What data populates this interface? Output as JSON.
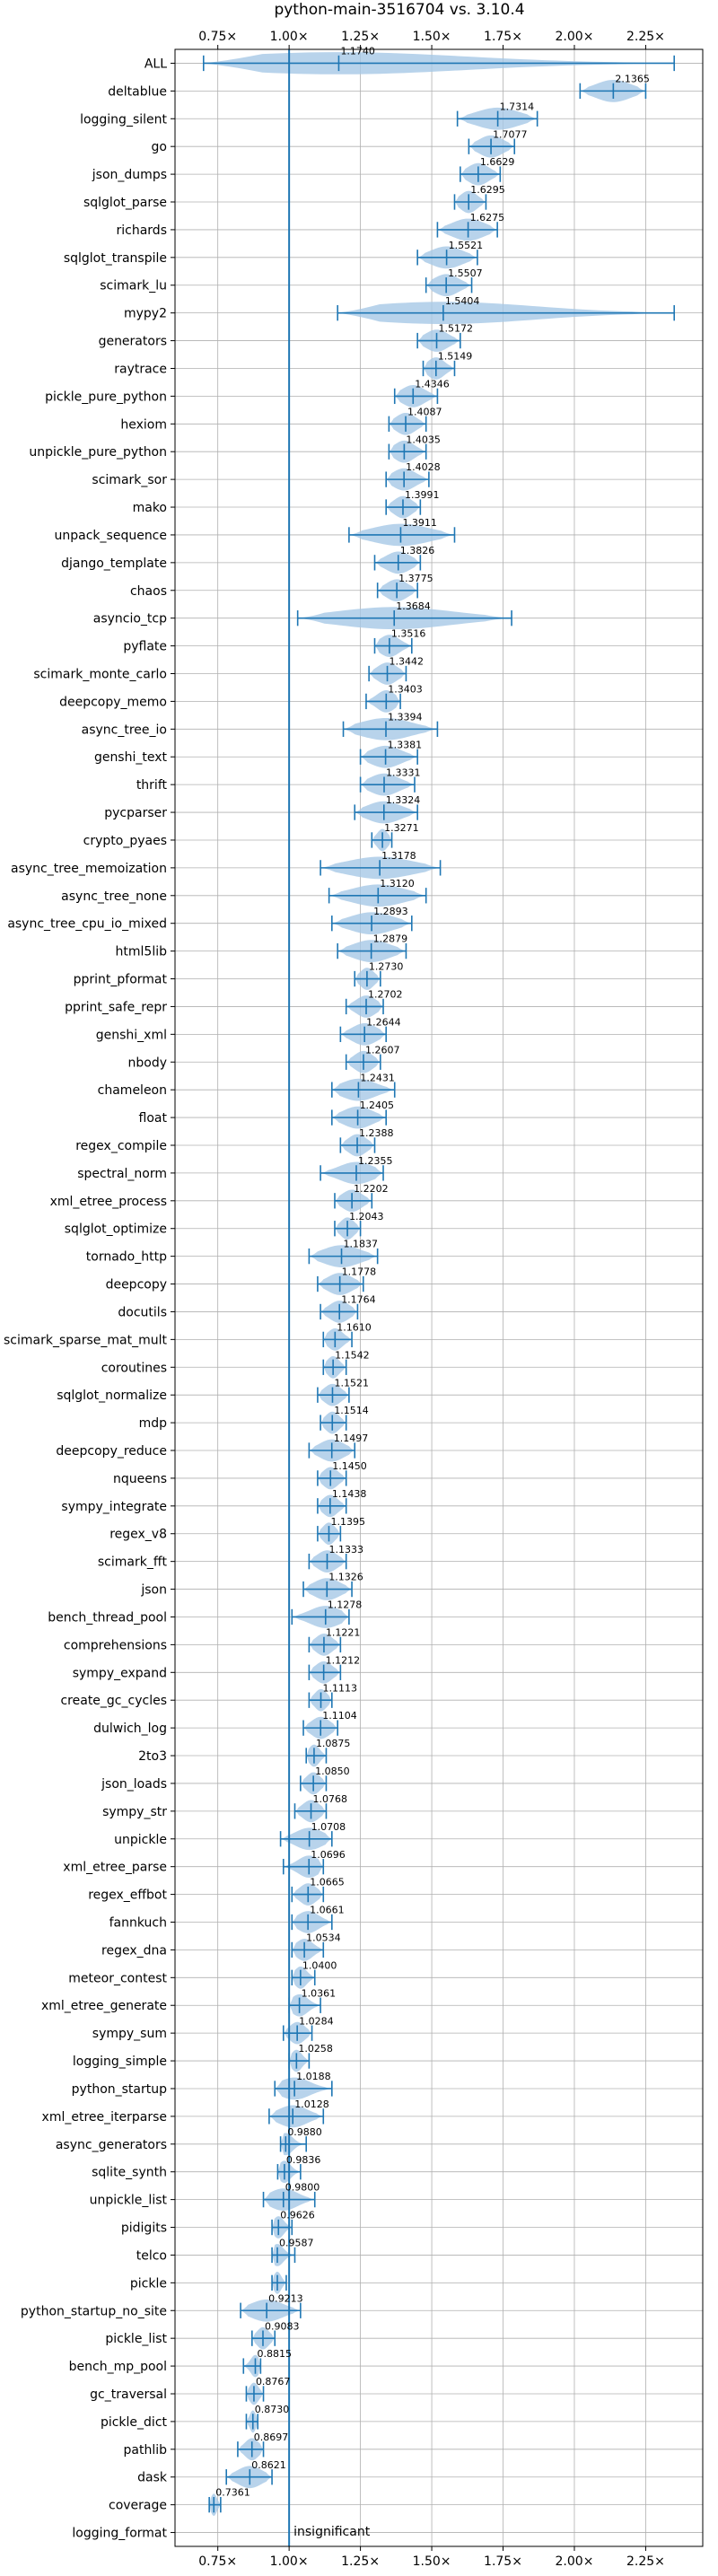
{
  "chart_data": {
    "type": "violin",
    "title": "python-main-3516704 vs. 3.10.4",
    "xlabel": "",
    "ylabel": "",
    "x_ticks": [
      "0.75×",
      "1.00×",
      "1.25×",
      "1.50×",
      "1.75×",
      "2.00×",
      "2.25×"
    ],
    "x_tick_values": [
      0.75,
      1.0,
      1.25,
      1.5,
      1.75,
      2.0,
      2.25
    ],
    "xlim": [
      0.6,
      2.45
    ],
    "grid": true,
    "reference_line": 1.0,
    "reference_label": "insignificant",
    "colors": {
      "violin": "#a6c8e6",
      "line": "#1f77b4"
    },
    "benchmarks": [
      {
        "name": "ALL",
        "value": 1.174,
        "value_label": "1.1740",
        "min": 0.7,
        "max": 2.35
      },
      {
        "name": "deltablue",
        "value": 2.1365,
        "value_label": "2.1365",
        "min": 2.02,
        "max": 2.25
      },
      {
        "name": "logging_silent",
        "value": 1.7314,
        "value_label": "1.7314",
        "min": 1.59,
        "max": 1.87
      },
      {
        "name": "go",
        "value": 1.7077,
        "value_label": "1.7077",
        "min": 1.63,
        "max": 1.79
      },
      {
        "name": "json_dumps",
        "value": 1.6629,
        "value_label": "1.6629",
        "min": 1.6,
        "max": 1.74
      },
      {
        "name": "sqlglot_parse",
        "value": 1.6295,
        "value_label": "1.6295",
        "min": 1.58,
        "max": 1.69
      },
      {
        "name": "richards",
        "value": 1.6275,
        "value_label": "1.6275",
        "min": 1.52,
        "max": 1.73
      },
      {
        "name": "sqlglot_transpile",
        "value": 1.5521,
        "value_label": "1.5521",
        "min": 1.45,
        "max": 1.66
      },
      {
        "name": "scimark_lu",
        "value": 1.5507,
        "value_label": "1.5507",
        "min": 1.48,
        "max": 1.64
      },
      {
        "name": "mypy2",
        "value": 1.5404,
        "value_label": "1.5404",
        "min": 1.17,
        "max": 2.35
      },
      {
        "name": "generators",
        "value": 1.5172,
        "value_label": "1.5172",
        "min": 1.45,
        "max": 1.6
      },
      {
        "name": "raytrace",
        "value": 1.5149,
        "value_label": "1.5149",
        "min": 1.47,
        "max": 1.58
      },
      {
        "name": "pickle_pure_python",
        "value": 1.4346,
        "value_label": "1.4346",
        "min": 1.37,
        "max": 1.52
      },
      {
        "name": "hexiom",
        "value": 1.4087,
        "value_label": "1.4087",
        "min": 1.35,
        "max": 1.48
      },
      {
        "name": "unpickle_pure_python",
        "value": 1.4035,
        "value_label": "1.4035",
        "min": 1.35,
        "max": 1.48
      },
      {
        "name": "scimark_sor",
        "value": 1.4028,
        "value_label": "1.4028",
        "min": 1.34,
        "max": 1.49
      },
      {
        "name": "mako",
        "value": 1.3991,
        "value_label": "1.3991",
        "min": 1.34,
        "max": 1.46
      },
      {
        "name": "unpack_sequence",
        "value": 1.3911,
        "value_label": "1.3911",
        "min": 1.21,
        "max": 1.58
      },
      {
        "name": "django_template",
        "value": 1.3826,
        "value_label": "1.3826",
        "min": 1.3,
        "max": 1.46
      },
      {
        "name": "chaos",
        "value": 1.3775,
        "value_label": "1.3775",
        "min": 1.31,
        "max": 1.45
      },
      {
        "name": "asyncio_tcp",
        "value": 1.3684,
        "value_label": "1.3684",
        "min": 1.03,
        "max": 1.78
      },
      {
        "name": "pyflate",
        "value": 1.3516,
        "value_label": "1.3516",
        "min": 1.3,
        "max": 1.43
      },
      {
        "name": "scimark_monte_carlo",
        "value": 1.3442,
        "value_label": "1.3442",
        "min": 1.28,
        "max": 1.41
      },
      {
        "name": "deepcopy_memo",
        "value": 1.3403,
        "value_label": "1.3403",
        "min": 1.27,
        "max": 1.39
      },
      {
        "name": "async_tree_io",
        "value": 1.3394,
        "value_label": "1.3394",
        "min": 1.19,
        "max": 1.52
      },
      {
        "name": "genshi_text",
        "value": 1.3381,
        "value_label": "1.3381",
        "min": 1.25,
        "max": 1.45
      },
      {
        "name": "thrift",
        "value": 1.3331,
        "value_label": "1.3331",
        "min": 1.25,
        "max": 1.44
      },
      {
        "name": "pycparser",
        "value": 1.3324,
        "value_label": "1.3324",
        "min": 1.23,
        "max": 1.45
      },
      {
        "name": "crypto_pyaes",
        "value": 1.3271,
        "value_label": "1.3271",
        "min": 1.29,
        "max": 1.36
      },
      {
        "name": "async_tree_memoization",
        "value": 1.3178,
        "value_label": "1.3178",
        "min": 1.11,
        "max": 1.53
      },
      {
        "name": "async_tree_none",
        "value": 1.312,
        "value_label": "1.3120",
        "min": 1.14,
        "max": 1.48
      },
      {
        "name": "async_tree_cpu_io_mixed",
        "value": 1.2893,
        "value_label": "1.2893",
        "min": 1.15,
        "max": 1.43
      },
      {
        "name": "html5lib",
        "value": 1.2879,
        "value_label": "1.2879",
        "min": 1.17,
        "max": 1.41
      },
      {
        "name": "pprint_pformat",
        "value": 1.273,
        "value_label": "1.2730",
        "min": 1.23,
        "max": 1.32
      },
      {
        "name": "pprint_safe_repr",
        "value": 1.2702,
        "value_label": "1.2702",
        "min": 1.2,
        "max": 1.33
      },
      {
        "name": "genshi_xml",
        "value": 1.2644,
        "value_label": "1.2644",
        "min": 1.18,
        "max": 1.34
      },
      {
        "name": "nbody",
        "value": 1.2607,
        "value_label": "1.2607",
        "min": 1.2,
        "max": 1.32
      },
      {
        "name": "chameleon",
        "value": 1.2431,
        "value_label": "1.2431",
        "min": 1.15,
        "max": 1.37
      },
      {
        "name": "float",
        "value": 1.2405,
        "value_label": "1.2405",
        "min": 1.15,
        "max": 1.34
      },
      {
        "name": "regex_compile",
        "value": 1.2388,
        "value_label": "1.2388",
        "min": 1.18,
        "max": 1.3
      },
      {
        "name": "spectral_norm",
        "value": 1.2355,
        "value_label": "1.2355",
        "min": 1.11,
        "max": 1.33
      },
      {
        "name": "xml_etree_process",
        "value": 1.2202,
        "value_label": "1.2202",
        "min": 1.16,
        "max": 1.29
      },
      {
        "name": "sqlglot_optimize",
        "value": 1.2043,
        "value_label": "1.2043",
        "min": 1.16,
        "max": 1.25
      },
      {
        "name": "tornado_http",
        "value": 1.1837,
        "value_label": "1.1837",
        "min": 1.07,
        "max": 1.31
      },
      {
        "name": "deepcopy",
        "value": 1.1778,
        "value_label": "1.1778",
        "min": 1.1,
        "max": 1.26
      },
      {
        "name": "docutils",
        "value": 1.1764,
        "value_label": "1.1764",
        "min": 1.11,
        "max": 1.24
      },
      {
        "name": "scimark_sparse_mat_mult",
        "value": 1.161,
        "value_label": "1.1610",
        "min": 1.12,
        "max": 1.22
      },
      {
        "name": "coroutines",
        "value": 1.1542,
        "value_label": "1.1542",
        "min": 1.12,
        "max": 1.2
      },
      {
        "name": "sqlglot_normalize",
        "value": 1.1521,
        "value_label": "1.1521",
        "min": 1.1,
        "max": 1.21
      },
      {
        "name": "mdp",
        "value": 1.1514,
        "value_label": "1.1514",
        "min": 1.11,
        "max": 1.2
      },
      {
        "name": "deepcopy_reduce",
        "value": 1.1497,
        "value_label": "1.1497",
        "min": 1.07,
        "max": 1.23
      },
      {
        "name": "nqueens",
        "value": 1.145,
        "value_label": "1.1450",
        "min": 1.1,
        "max": 1.2
      },
      {
        "name": "sympy_integrate",
        "value": 1.1438,
        "value_label": "1.1438",
        "min": 1.1,
        "max": 1.2
      },
      {
        "name": "regex_v8",
        "value": 1.1395,
        "value_label": "1.1395",
        "min": 1.1,
        "max": 1.18
      },
      {
        "name": "scimark_fft",
        "value": 1.1333,
        "value_label": "1.1333",
        "min": 1.07,
        "max": 1.2
      },
      {
        "name": "json",
        "value": 1.1326,
        "value_label": "1.1326",
        "min": 1.05,
        "max": 1.22
      },
      {
        "name": "bench_thread_pool",
        "value": 1.1278,
        "value_label": "1.1278",
        "min": 1.01,
        "max": 1.21
      },
      {
        "name": "comprehensions",
        "value": 1.1221,
        "value_label": "1.1221",
        "min": 1.07,
        "max": 1.18
      },
      {
        "name": "sympy_expand",
        "value": 1.1212,
        "value_label": "1.1212",
        "min": 1.07,
        "max": 1.18
      },
      {
        "name": "create_gc_cycles",
        "value": 1.1113,
        "value_label": "1.1113",
        "min": 1.07,
        "max": 1.15
      },
      {
        "name": "dulwich_log",
        "value": 1.1104,
        "value_label": "1.1104",
        "min": 1.05,
        "max": 1.17
      },
      {
        "name": "2to3",
        "value": 1.0875,
        "value_label": "1.0875",
        "min": 1.06,
        "max": 1.13
      },
      {
        "name": "json_loads",
        "value": 1.085,
        "value_label": "1.0850",
        "min": 1.04,
        "max": 1.13
      },
      {
        "name": "sympy_str",
        "value": 1.0768,
        "value_label": "1.0768",
        "min": 1.02,
        "max": 1.13
      },
      {
        "name": "unpickle",
        "value": 1.0708,
        "value_label": "1.0708",
        "min": 0.97,
        "max": 1.15
      },
      {
        "name": "xml_etree_parse",
        "value": 1.0696,
        "value_label": "1.0696",
        "min": 0.98,
        "max": 1.12
      },
      {
        "name": "regex_effbot",
        "value": 1.0665,
        "value_label": "1.0665",
        "min": 1.01,
        "max": 1.12
      },
      {
        "name": "fannkuch",
        "value": 1.0661,
        "value_label": "1.0661",
        "min": 1.01,
        "max": 1.15
      },
      {
        "name": "regex_dna",
        "value": 1.0534,
        "value_label": "1.0534",
        "min": 1.01,
        "max": 1.12
      },
      {
        "name": "meteor_contest",
        "value": 1.04,
        "value_label": "1.0400",
        "min": 1.01,
        "max": 1.09
      },
      {
        "name": "xml_etree_generate",
        "value": 1.0361,
        "value_label": "1.0361",
        "min": 1.0,
        "max": 1.11
      },
      {
        "name": "sympy_sum",
        "value": 1.0284,
        "value_label": "1.0284",
        "min": 0.98,
        "max": 1.08
      },
      {
        "name": "logging_simple",
        "value": 1.0258,
        "value_label": "1.0258",
        "min": 1.0,
        "max": 1.07
      },
      {
        "name": "python_startup",
        "value": 1.0188,
        "value_label": "1.0188",
        "min": 0.95,
        "max": 1.15
      },
      {
        "name": "xml_etree_iterparse",
        "value": 1.0128,
        "value_label": "1.0128",
        "min": 0.93,
        "max": 1.12
      },
      {
        "name": "async_generators",
        "value": 0.988,
        "value_label": "0.9880",
        "min": 0.97,
        "max": 1.06
      },
      {
        "name": "sqlite_synth",
        "value": 0.9836,
        "value_label": "0.9836",
        "min": 0.96,
        "max": 1.04
      },
      {
        "name": "unpickle_list",
        "value": 0.98,
        "value_label": "0.9800",
        "min": 0.91,
        "max": 1.09
      },
      {
        "name": "pidigits",
        "value": 0.9626,
        "value_label": "0.9626",
        "min": 0.94,
        "max": 1.01
      },
      {
        "name": "telco",
        "value": 0.9587,
        "value_label": "0.9587",
        "min": 0.94,
        "max": 1.02
      },
      {
        "name": "pickle",
        "value": 0.9587,
        "value_label": "",
        "min": 0.94,
        "max": 0.99
      },
      {
        "name": "python_startup_no_site",
        "value": 0.9213,
        "value_label": "0.9213",
        "min": 0.83,
        "max": 1.04
      },
      {
        "name": "pickle_list",
        "value": 0.9083,
        "value_label": "0.9083",
        "min": 0.87,
        "max": 0.95
      },
      {
        "name": "bench_mp_pool",
        "value": 0.8815,
        "value_label": "0.8815",
        "min": 0.84,
        "max": 0.9
      },
      {
        "name": "gc_traversal",
        "value": 0.8767,
        "value_label": "0.8767",
        "min": 0.85,
        "max": 0.91
      },
      {
        "name": "pickle_dict",
        "value": 0.873,
        "value_label": "0.8730",
        "min": 0.85,
        "max": 0.89
      },
      {
        "name": "pathlib",
        "value": 0.8697,
        "value_label": "0.8697",
        "min": 0.82,
        "max": 0.91
      },
      {
        "name": "dask",
        "value": 0.8621,
        "value_label": "0.8621",
        "min": 0.78,
        "max": 0.94
      },
      {
        "name": "coverage",
        "value": 0.7361,
        "value_label": "0.7361",
        "min": 0.72,
        "max": 0.76
      },
      {
        "name": "logging_format",
        "value": null,
        "value_label": "",
        "min": null,
        "max": null
      }
    ]
  }
}
